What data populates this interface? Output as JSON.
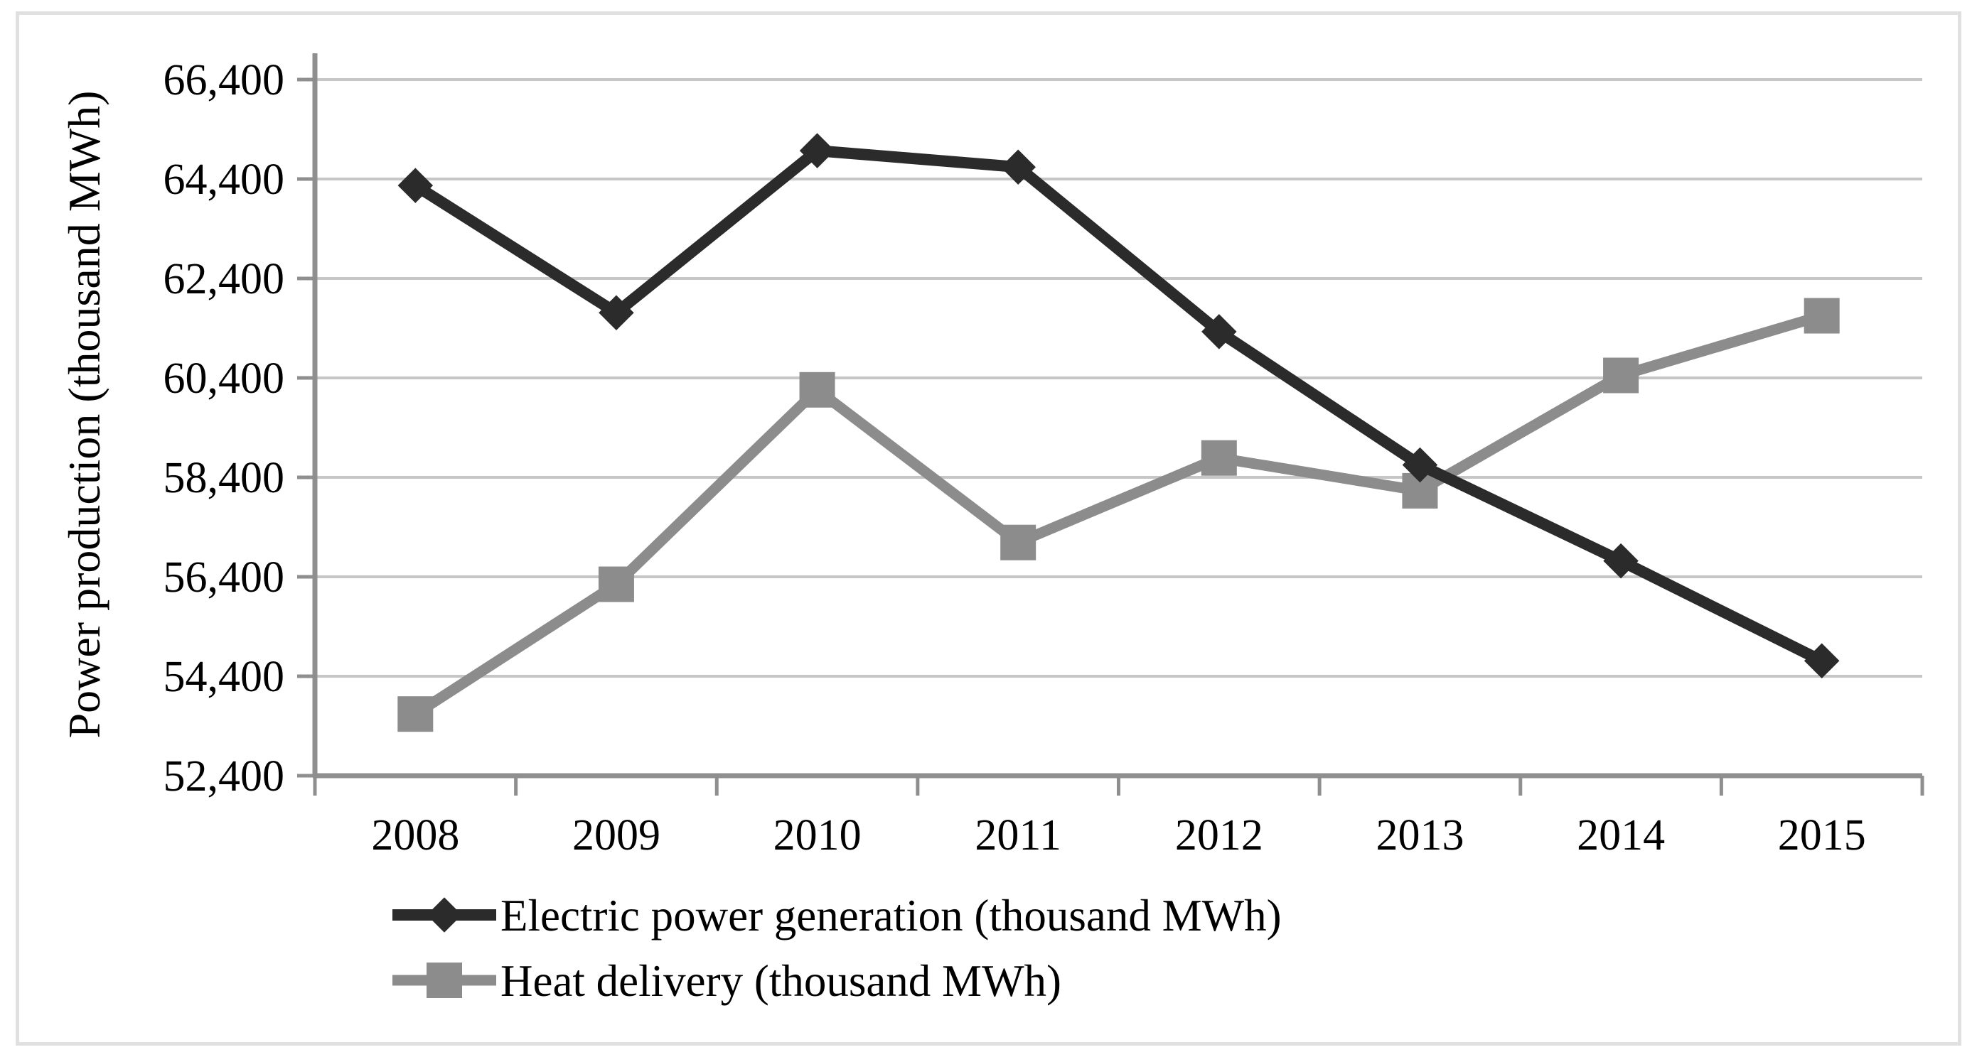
{
  "figure": {
    "background": "#ffffff",
    "border_color": "#e0e0e0"
  },
  "chart_data": {
    "type": "line",
    "title": "",
    "xlabel": "",
    "ylabel": "Power production (thousand MWh)",
    "categories": [
      "2008",
      "2009",
      "2010",
      "2011",
      "2012",
      "2013",
      "2014",
      "2015"
    ],
    "series": [
      {
        "name": "Electric power generation (thousand MWh)",
        "marker": "diamond",
        "color": "#2b2b2b",
        "line_width": 16,
        "values": [
          64270,
          61710,
          64970,
          64640,
          61330,
          58650,
          56720,
          54710
        ]
      },
      {
        "name": "Heat delivery (thousand MWh)",
        "marker": "square",
        "color": "#8c8c8c",
        "line_width": 15,
        "values": [
          53640,
          56250,
          60160,
          57090,
          58790,
          58130,
          60450,
          61650
        ]
      }
    ],
    "ylim": [
      52400,
      66400
    ],
    "ytick_step": 2000,
    "y_tick_labels": [
      "52,400",
      "54,400",
      "56,400",
      "58,400",
      "60,400",
      "62,400",
      "64,400",
      "66,400"
    ],
    "grid": "horizontal",
    "gridline_color": "#c6c6c6",
    "axis_color": "#8f8f8f",
    "text_color": "#000000",
    "legend_position": "bottom-left"
  }
}
